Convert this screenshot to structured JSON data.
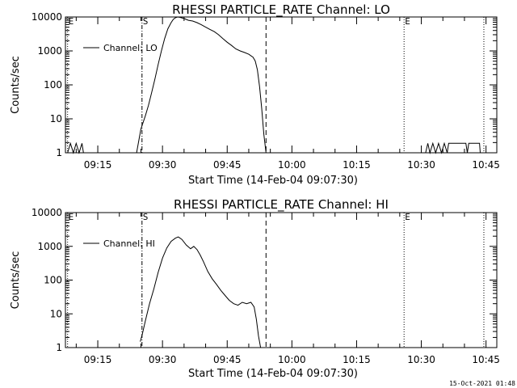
{
  "chart_data": [
    {
      "type": "line",
      "title": "RHESSI PARTICLE_RATE Channel: LO",
      "xlabel": "Start Time (14-Feb-04 09:07:30)",
      "ylabel": "Counts/sec",
      "y_scale": "log",
      "xlim": [
        "09:07:30",
        "10:47:30"
      ],
      "ylim": [
        1,
        10000
      ],
      "x_ticks": [
        "09:15",
        "09:30",
        "09:45",
        "10:00",
        "10:15",
        "10:30",
        "10:45"
      ],
      "y_ticks": [
        "1",
        "10",
        "100",
        "1000",
        "10000"
      ],
      "legend": {
        "position": "top-left",
        "entries": [
          "Channel: LO"
        ]
      },
      "markers": [
        {
          "label": "E",
          "time": "09:08:00",
          "style": "dotted"
        },
        {
          "label": "S",
          "time": "09:25:15",
          "style": "dash-dot"
        },
        {
          "label": "",
          "time": "09:54:00",
          "style": "dashed"
        },
        {
          "label": "E",
          "time": "10:26:00",
          "style": "dotted"
        },
        {
          "label": "",
          "time": "10:44:30",
          "style": "dotted"
        }
      ],
      "series": [
        {
          "name": "Channel: LO",
          "segments": [
            {
              "x": [
                "09:08:00",
                "09:08:40",
                "09:09:20",
                "09:10:00",
                "09:10:40",
                "09:11:20",
                "09:11:40"
              ],
              "y": [
                1,
                1.9,
                1,
                1.9,
                1,
                1.9,
                1
              ]
            },
            {
              "x": [
                "09:24:00",
                "09:25:00",
                "09:26:00",
                "09:26:45",
                "09:27:30",
                "09:28:15",
                "09:29:00",
                "09:29:45",
                "09:30:30",
                "09:31:15",
                "09:32:00",
                "09:32:30",
                "09:33:00",
                "09:33:30",
                "09:34:00",
                "09:35:00",
                "09:36:00",
                "09:37:00",
                "09:38:00",
                "09:39:00",
                "09:40:00",
                "09:41:00",
                "09:42:00",
                "09:43:00",
                "09:44:00",
                "09:45:00",
                "09:46:00",
                "09:47:00",
                "09:48:00",
                "09:49:00",
                "09:50:00",
                "09:51:00",
                "09:51:30",
                "09:52:00",
                "09:52:30",
                "09:53:00",
                "09:53:30",
                "09:54:00"
              ],
              "y": [
                1,
                5,
                12,
                25,
                60,
                150,
                400,
                1000,
                2300,
                4500,
                6800,
                8500,
                9500,
                10000,
                9800,
                9000,
                8000,
                7600,
                6800,
                5900,
                5000,
                4300,
                3700,
                3000,
                2300,
                1800,
                1450,
                1150,
                1000,
                900,
                800,
                650,
                500,
                280,
                90,
                20,
                3.5,
                1
              ]
            },
            {
              "x": [
                "10:31:00",
                "10:31:30",
                "10:32:00",
                "10:32:40",
                "10:33:20",
                "10:34:00",
                "10:34:40",
                "10:35:20",
                "10:36:00",
                "10:36:20",
                "10:40:20",
                "10:40:40",
                "10:41:00",
                "10:43:30",
                "10:43:40"
              ],
              "y": [
                1,
                1.9,
                1,
                1.9,
                1,
                1.9,
                1,
                1.9,
                1,
                1.9,
                1.9,
                1,
                1.9,
                1.9,
                1
              ]
            }
          ]
        }
      ]
    },
    {
      "type": "line",
      "title": "RHESSI PARTICLE_RATE Channel: HI",
      "xlabel": "Start Time (14-Feb-04 09:07:30)",
      "ylabel": "Counts/sec",
      "y_scale": "log",
      "xlim": [
        "09:07:30",
        "10:47:30"
      ],
      "ylim": [
        1,
        10000
      ],
      "x_ticks": [
        "09:15",
        "09:30",
        "09:45",
        "10:00",
        "10:15",
        "10:30",
        "10:45"
      ],
      "y_ticks": [
        "1",
        "10",
        "100",
        "1000",
        "10000"
      ],
      "legend": {
        "position": "top-left",
        "entries": [
          "Channel: HI"
        ]
      },
      "markers": [
        {
          "label": "E",
          "time": "09:08:00",
          "style": "dotted"
        },
        {
          "label": "S",
          "time": "09:25:15",
          "style": "dash-dot"
        },
        {
          "label": "",
          "time": "09:54:00",
          "style": "dashed"
        },
        {
          "label": "E",
          "time": "10:26:00",
          "style": "dotted"
        },
        {
          "label": "",
          "time": "10:44:30",
          "style": "dotted"
        }
      ],
      "series": [
        {
          "name": "Channel: HI",
          "segments": [
            {
              "x": [
                "09:24:50",
                "09:25:20",
                "09:26:00",
                "09:27:00",
                "09:28:00",
                "09:29:00",
                "09:30:00",
                "09:31:00",
                "09:32:00",
                "09:33:00",
                "09:33:40",
                "09:34:30",
                "09:35:30",
                "09:36:30",
                "09:37:15",
                "09:38:00",
                "09:38:45",
                "09:39:30",
                "09:40:30",
                "09:41:30",
                "09:42:30",
                "09:43:30",
                "09:44:30",
                "09:45:30",
                "09:46:30",
                "09:47:30",
                "09:48:30",
                "09:49:30",
                "09:50:30",
                "09:51:15",
                "09:51:45",
                "09:52:15",
                "09:52:45"
              ],
              "y": [
                1.5,
                2.5,
                6,
                20,
                55,
                170,
                450,
                900,
                1400,
                1750,
                1900,
                1600,
                1100,
                850,
                1000,
                800,
                550,
                350,
                180,
                110,
                75,
                50,
                35,
                25,
                20,
                18,
                22,
                20,
                22,
                16,
                7,
                2.2,
                1
              ]
            }
          ]
        }
      ]
    }
  ],
  "footer": {
    "timestamp": "15-Oct-2021 01:48"
  }
}
